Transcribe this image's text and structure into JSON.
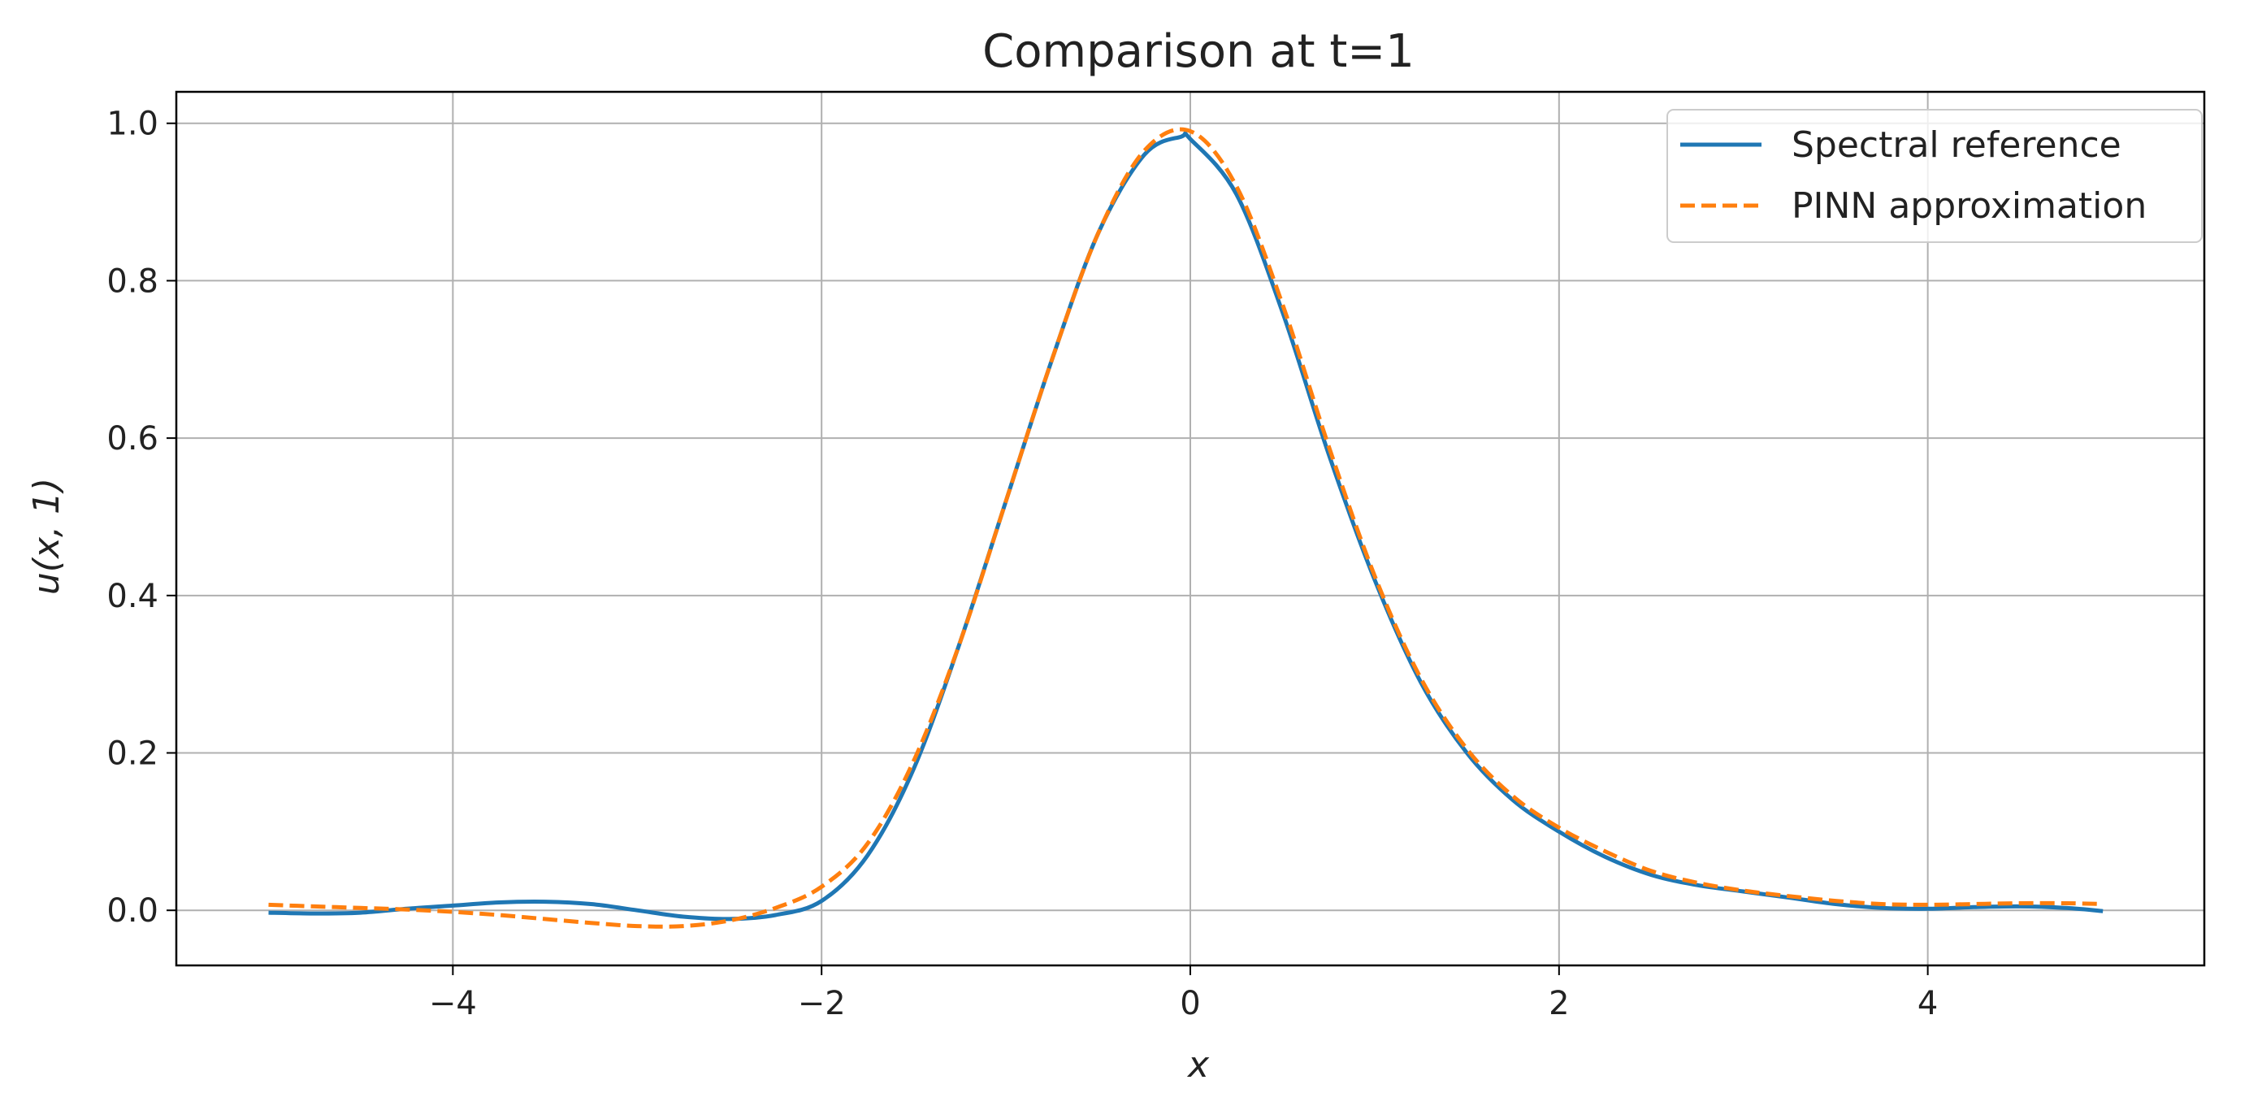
{
  "chart_data": {
    "type": "line",
    "title": "Comparison at t=1",
    "xlabel": "x",
    "ylabel": "u(x, 1)",
    "xlim": [
      -5.5,
      5.5
    ],
    "ylim": [
      -0.07,
      1.04
    ],
    "xticks": [
      -4,
      -2,
      0,
      2,
      4
    ],
    "xtick_labels": [
      "−4",
      "−2",
      "0",
      "2",
      "4"
    ],
    "yticks": [
      0.0,
      0.2,
      0.4,
      0.6,
      0.8,
      1.0
    ],
    "ytick_labels": [
      "0.0",
      "0.2",
      "0.4",
      "0.6",
      "0.8",
      "1.0"
    ],
    "grid": true,
    "legend_position": "top-right",
    "series": [
      {
        "name": "Spectral reference",
        "color": "#1f77b4",
        "style": "solid",
        "x": [
          -5.0,
          -4.75,
          -4.5,
          -4.25,
          -4.0,
          -3.75,
          -3.5,
          -3.25,
          -3.0,
          -2.75,
          -2.5,
          -2.25,
          -2.0,
          -1.75,
          -1.5,
          -1.25,
          -1.0,
          -0.75,
          -0.5,
          -0.25,
          -0.05,
          0.0,
          0.25,
          0.5,
          0.75,
          1.0,
          1.25,
          1.5,
          1.75,
          2.0,
          2.25,
          2.5,
          2.75,
          3.0,
          3.25,
          3.5,
          3.75,
          4.0,
          4.25,
          4.5,
          4.75,
          4.95
        ],
        "y": [
          -0.003,
          -0.004,
          -0.003,
          0.002,
          0.006,
          0.01,
          0.011,
          0.008,
          0.0,
          -0.008,
          -0.011,
          -0.006,
          0.012,
          0.07,
          0.18,
          0.34,
          0.52,
          0.7,
          0.86,
          0.96,
          0.983,
          0.98,
          0.91,
          0.76,
          0.58,
          0.42,
          0.29,
          0.2,
          0.14,
          0.1,
          0.068,
          0.045,
          0.032,
          0.024,
          0.016,
          0.008,
          0.003,
          0.002,
          0.004,
          0.005,
          0.003,
          -0.001
        ]
      },
      {
        "name": "PINN approximation",
        "color": "#ff7f0e",
        "style": "dashed",
        "x": [
          -5.0,
          -4.75,
          -4.5,
          -4.25,
          -4.0,
          -3.75,
          -3.5,
          -3.25,
          -3.0,
          -2.75,
          -2.5,
          -2.25,
          -2.0,
          -1.75,
          -1.5,
          -1.25,
          -1.0,
          -0.75,
          -0.5,
          -0.25,
          0.0,
          0.25,
          0.5,
          0.75,
          1.0,
          1.25,
          1.5,
          1.75,
          2.0,
          2.25,
          2.5,
          2.75,
          3.0,
          3.25,
          3.5,
          3.75,
          4.0,
          4.25,
          4.5,
          4.75,
          4.95
        ],
        "y": [
          0.007,
          0.005,
          0.003,
          0.001,
          -0.002,
          -0.006,
          -0.011,
          -0.016,
          -0.02,
          -0.02,
          -0.013,
          0.003,
          0.03,
          0.085,
          0.19,
          0.34,
          0.52,
          0.7,
          0.86,
          0.965,
          0.99,
          0.92,
          0.77,
          0.59,
          0.425,
          0.295,
          0.205,
          0.145,
          0.105,
          0.075,
          0.05,
          0.035,
          0.025,
          0.018,
          0.012,
          0.008,
          0.007,
          0.008,
          0.009,
          0.009,
          0.008
        ]
      }
    ]
  }
}
